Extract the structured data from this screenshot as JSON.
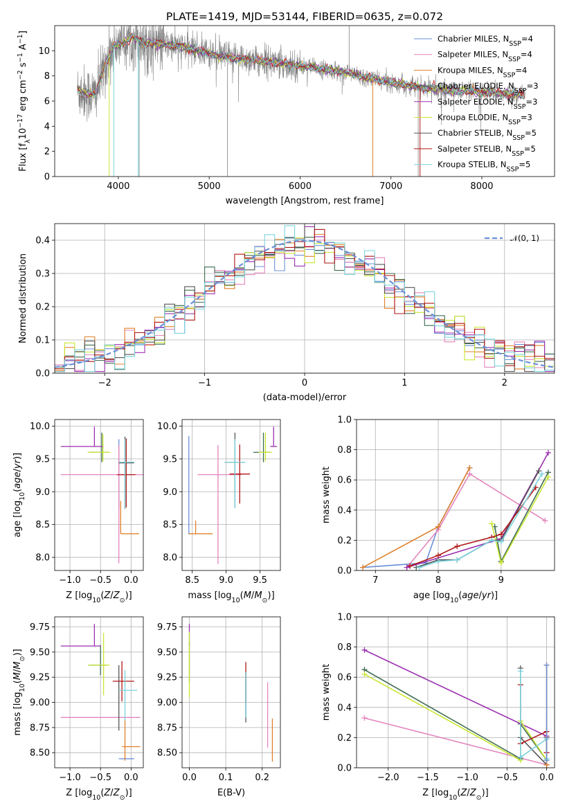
{
  "title": "PLATE=1419, MJD=53144, FIBERID=0635, z=0.072",
  "colors": {
    "chabrier_miles": "#6a8fd8",
    "salpeter_miles": "#e484bc",
    "kroupa_miles": "#e0802a",
    "chabrier_elodie": "#3d6b50",
    "salpeter_elodie": "#9a2fb0",
    "kroupa_elodie": "#c8e632",
    "chabrier_stelib": "#555555",
    "salpeter_stelib": "#b01515",
    "kroupa_stelib": "#7ad3dc",
    "data": "#808080",
    "normal": "#6a8fd8"
  },
  "chart_data": [
    {
      "id": "spectrum",
      "type": "line",
      "title": "PLATE=1419, MJD=53144, FIBERID=0635, z=0.072",
      "xlabel": "wavelength [Angstrom, rest frame]",
      "ylabel_parts": [
        "Flux [f",
        "λ",
        "10",
        "−17",
        " erg cm",
        "−2",
        " s",
        "−1",
        " A",
        "−1",
        "]"
      ],
      "xlim": [
        3300,
        8800
      ],
      "ylim": [
        0,
        12
      ],
      "xticks": [
        4000,
        5000,
        6000,
        7000,
        8000
      ],
      "yticks": [
        0,
        2,
        4,
        6,
        8,
        10
      ],
      "continuum": {
        "x": [
          3550,
          3650,
          3750,
          3850,
          3950,
          4050,
          4150,
          4300,
          4500,
          4700,
          4900,
          5100,
          5300,
          5500,
          5700,
          5900,
          6100,
          6300,
          6500,
          6700,
          6900,
          7100,
          7300,
          7500,
          7700,
          7900,
          8100,
          8300,
          8480
        ],
        "y": [
          6.8,
          6.6,
          6.5,
          8.8,
          10.4,
          10.6,
          11.1,
          10.6,
          10.5,
          10.3,
          10.0,
          9.6,
          9.4,
          9.3,
          9.1,
          8.9,
          8.7,
          8.5,
          8.3,
          7.9,
          7.6,
          7.4,
          7.1,
          6.95,
          6.85,
          6.75,
          6.65,
          6.55,
          6.5
        ]
      },
      "legend": [
        {
          "main": "Chabrier MILES, N",
          "sub": "SSP",
          "end": "=4",
          "color": "chabrier_miles"
        },
        {
          "main": "Salpeter MILES, N",
          "sub": "SSP",
          "end": "=4",
          "color": "salpeter_miles"
        },
        {
          "main": "Kroupa MILES, N",
          "sub": "SSP",
          "end": "=4",
          "color": "kroupa_miles"
        },
        {
          "main": "Chabrier ELODIE, N",
          "sub": "SSP",
          "end": "=3",
          "color": "chabrier_elodie"
        },
        {
          "main": "Salpeter ELODIE, N",
          "sub": "SSP",
          "end": "=3",
          "color": "salpeter_elodie"
        },
        {
          "main": "Kroupa ELODIE, N",
          "sub": "SSP",
          "end": "=3",
          "color": "kroupa_elodie"
        },
        {
          "main": "Chabrier STELIB, N",
          "sub": "SSP",
          "end": "=5",
          "color": "chabrier_stelib"
        },
        {
          "main": "Salpeter STELIB, N",
          "sub": "SSP",
          "end": "=5",
          "color": "salpeter_stelib"
        },
        {
          "main": "Kroupa STELIB, N",
          "sub": "SSP",
          "end": "=5",
          "color": "kroupa_stelib"
        }
      ],
      "legend_position": "upper right"
    },
    {
      "id": "residuals",
      "type": "histogram",
      "xlabel": "(data-model)/error",
      "ylabel": "Normed distribution",
      "xlim": [
        -2.5,
        2.5
      ],
      "ylim": [
        0,
        0.45
      ],
      "xticks": [
        -2,
        -1,
        0,
        1,
        2
      ],
      "yticks": [
        0.0,
        0.1,
        0.2,
        0.3,
        0.4
      ],
      "bin_width": 0.1,
      "legend": "𝒩(0, 1)",
      "legend_position": "upper right",
      "grid": true
    },
    {
      "id": "age_vs_Z",
      "type": "errorbar",
      "xlabel": "Z [log10(Z/Z⊙)]",
      "ylabel": "age [log10(age/yr)]",
      "xlim": [
        -1.25,
        0.2
      ],
      "ylim": [
        7.8,
        10.1
      ],
      "xticks": [
        -1.0,
        -0.5,
        0.0
      ],
      "yticks": [
        8.0,
        8.5,
        9.0,
        9.5,
        10.0
      ],
      "points": [
        {
          "c": "chabrier_miles",
          "x": -0.2,
          "xerr": [
            0,
            0
          ],
          "y": 9.3,
          "yerr": [
            0.55,
            0.5
          ]
        },
        {
          "c": "salpeter_miles",
          "x": -0.2,
          "xerr": [
            0.95,
            0.4
          ],
          "y": 9.26,
          "yerr": [
            1.35,
            0.45
          ]
        },
        {
          "c": "kroupa_miles",
          "x": -0.17,
          "xerr": [
            0,
            0.3
          ],
          "y": 8.36,
          "yerr": [
            0,
            0.5
          ]
        },
        {
          "c": "chabrier_elodie",
          "x": -0.48,
          "xerr": [
            0.2,
            0.1
          ],
          "y": 9.6,
          "yerr": [
            0.15,
            0.3
          ]
        },
        {
          "c": "salpeter_elodie",
          "x": -0.6,
          "xerr": [
            0.55,
            0.15
          ],
          "y": 9.69,
          "yerr": [
            0,
            0.3
          ]
        },
        {
          "c": "kroupa_elodie",
          "x": -0.46,
          "xerr": [
            0.25,
            0.12
          ],
          "y": 9.6,
          "yerr": [
            0.14,
            0.28
          ]
        },
        {
          "c": "chabrier_stelib",
          "x": -0.1,
          "xerr": [
            0.1,
            0.15
          ],
          "y": 9.44,
          "yerr": [
            0.7,
            0.4
          ]
        },
        {
          "c": "salpeter_stelib",
          "x": -0.08,
          "xerr": [
            0.15,
            0.15
          ],
          "y": 9.26,
          "yerr": [
            0.5,
            0.55
          ]
        },
        {
          "c": "kroupa_stelib",
          "x": -0.1,
          "xerr": [
            0.1,
            0.15
          ],
          "y": 9.45,
          "yerr": [
            0.7,
            0.35
          ]
        }
      ]
    },
    {
      "id": "age_vs_mass",
      "type": "errorbar",
      "xlabel": "mass [log10(M/M⊙)]",
      "ylabel": "",
      "xlim": [
        8.35,
        9.8
      ],
      "ylim": [
        7.8,
        10.1
      ],
      "xticks": [
        8.5,
        9.0,
        9.5
      ],
      "yticks": [
        8.0,
        8.5,
        9.0,
        9.5,
        10.0
      ],
      "points": [
        {
          "c": "chabrier_miles",
          "x": 8.45,
          "xerr": [
            0,
            0
          ],
          "y": 9.3,
          "yerr": [
            0.95,
            0.55
          ]
        },
        {
          "c": "salpeter_miles",
          "x": 8.88,
          "xerr": [
            0.3,
            0.35
          ],
          "y": 9.26,
          "yerr": [
            1.36,
            0.45
          ]
        },
        {
          "c": "kroupa_miles",
          "x": 8.55,
          "xerr": [
            0.1,
            0.25
          ],
          "y": 8.36,
          "yerr": [
            0,
            0.2
          ]
        },
        {
          "c": "chabrier_elodie",
          "x": 9.55,
          "xerr": [
            0.15,
            0.1
          ],
          "y": 9.6,
          "yerr": [
            0.15,
            0.3
          ]
        },
        {
          "c": "salpeter_elodie",
          "x": 9.7,
          "xerr": [
            0.05,
            0.05
          ],
          "y": 9.69,
          "yerr": [
            0,
            0.3
          ]
        },
        {
          "c": "kroupa_elodie",
          "x": 9.58,
          "xerr": [
            0.1,
            0.1
          ],
          "y": 9.6,
          "yerr": [
            0.14,
            0.3
          ]
        },
        {
          "c": "chabrier_stelib",
          "x": 9.13,
          "xerr": [
            0.15,
            0.15
          ],
          "y": 9.45,
          "yerr": [
            0.7,
            0.45
          ]
        },
        {
          "c": "salpeter_stelib",
          "x": 9.2,
          "xerr": [
            0.15,
            0.15
          ],
          "y": 9.27,
          "yerr": [
            0.45,
            0.45
          ]
        },
        {
          "c": "kroupa_stelib",
          "x": 9.13,
          "xerr": [
            0.15,
            0.15
          ],
          "y": 9.45,
          "yerr": [
            0.7,
            0.35
          ]
        }
      ]
    },
    {
      "id": "weight_vs_age",
      "type": "line",
      "xlabel": "age [log10(age/yr)]",
      "ylabel": "mass weight",
      "xlim": [
        6.7,
        9.85
      ],
      "ylim": [
        0,
        1.0
      ],
      "xticks": [
        7,
        8,
        9
      ],
      "yticks": [
        0.0,
        0.2,
        0.4,
        0.6,
        0.8,
        1.0
      ],
      "series": [
        {
          "c": "chabrier_miles",
          "x": [
            6.8,
            7.8,
            8.0,
            8.5
          ],
          "y": [
            0.02,
            0.05,
            0.29,
            0.68
          ]
        },
        {
          "c": "salpeter_miles",
          "x": [
            7.5,
            8.0,
            8.5,
            9.7
          ],
          "y": [
            0.02,
            0.27,
            0.64,
            0.33
          ]
        },
        {
          "c": "kroupa_miles",
          "x": [
            6.8,
            8.0,
            8.5
          ],
          "y": [
            0.02,
            0.29,
            0.68
          ]
        },
        {
          "c": "chabrier_elodie",
          "x": [
            8.9,
            9.0,
            9.75
          ],
          "y": [
            0.29,
            0.06,
            0.65
          ]
        },
        {
          "c": "salpeter_elodie",
          "x": [
            7.5,
            9.0,
            9.75
          ],
          "y": [
            0.02,
            0.21,
            0.78
          ]
        },
        {
          "c": "kroupa_elodie",
          "x": [
            8.85,
            9.0,
            9.75
          ],
          "y": [
            0.31,
            0.05,
            0.62
          ]
        },
        {
          "c": "chabrier_stelib",
          "x": [
            7.65,
            8.0,
            8.3,
            8.85,
            9.0,
            9.6
          ],
          "y": [
            0.02,
            0.07,
            0.07,
            0.2,
            0.2,
            0.66
          ]
        },
        {
          "c": "salpeter_stelib",
          "x": [
            7.55,
            8.0,
            8.3,
            8.85,
            9.0,
            9.55
          ],
          "y": [
            0.03,
            0.1,
            0.16,
            0.22,
            0.24,
            0.55
          ]
        },
        {
          "c": "kroupa_stelib",
          "x": [
            7.7,
            8.0,
            8.3,
            8.85,
            9.0,
            9.65
          ],
          "y": [
            0.02,
            0.06,
            0.07,
            0.2,
            0.19,
            0.64
          ]
        }
      ]
    },
    {
      "id": "mass_vs_Z",
      "type": "errorbar",
      "xlabel": "Z [log10(Z/Z⊙)]",
      "ylabel": "mass [log10(M/M⊙)]",
      "xlim": [
        -1.25,
        0.2
      ],
      "ylim": [
        8.35,
        9.85
      ],
      "xticks": [
        -1.0,
        -0.5,
        0.0
      ],
      "yticks": [
        8.5,
        8.75,
        9.0,
        9.25,
        9.5,
        9.75
      ],
      "points": [
        {
          "c": "chabrier_miles",
          "x": -0.1,
          "xerr": [
            0.1,
            0.15
          ],
          "y": 8.44,
          "yerr": [
            0,
            0
          ]
        },
        {
          "c": "salpeter_miles",
          "x": -0.2,
          "xerr": [
            0.95,
            0.35
          ],
          "y": 8.85,
          "yerr": [
            0,
            0
          ]
        },
        {
          "c": "kroupa_miles",
          "x": -0.1,
          "xerr": [
            0.05,
            0.25
          ],
          "y": 8.56,
          "yerr": [
            0.14,
            0.28
          ]
        },
        {
          "c": "chabrier_elodie",
          "x": -0.5,
          "xerr": [
            0.2,
            0.1
          ],
          "y": 9.37,
          "yerr": [
            0.1,
            0.2
          ]
        },
        {
          "c": "salpeter_elodie",
          "x": -0.6,
          "xerr": [
            0.55,
            0.1
          ],
          "y": 9.56,
          "yerr": [
            0,
            0.22
          ]
        },
        {
          "c": "kroupa_elodie",
          "x": -0.45,
          "xerr": [
            0.25,
            0.1
          ],
          "y": 9.37,
          "yerr": [
            0.3,
            0.32
          ]
        },
        {
          "c": "chabrier_stelib",
          "x": -0.2,
          "xerr": [
            0,
            0
          ],
          "y": 9.12,
          "yerr": [
            0.4,
            0.25
          ]
        },
        {
          "c": "salpeter_stelib",
          "x": -0.15,
          "xerr": [
            0.15,
            0.2
          ],
          "y": 9.21,
          "yerr": [
            0.2,
            0.2
          ]
        },
        {
          "c": "kroupa_stelib",
          "x": -0.1,
          "xerr": [
            0.1,
            0.2
          ],
          "y": 9.12,
          "yerr": [
            0.3,
            0.2
          ]
        }
      ]
    },
    {
      "id": "mass_vs_ebv",
      "type": "errorbar",
      "xlabel": "E(B-V)",
      "ylabel": "",
      "xlim": [
        -0.02,
        0.25
      ],
      "ylim": [
        8.35,
        9.85
      ],
      "xticks": [
        0.0,
        0.1,
        0.2
      ],
      "yticks": [
        8.5,
        8.75,
        9.0,
        9.25,
        9.5,
        9.75
      ],
      "points": [
        {
          "c": "chabrier_miles",
          "x": 0.155,
          "xerr": [
            0,
            0
          ],
          "y": 9.1,
          "yerr": [
            0.25,
            0.2
          ]
        },
        {
          "c": "salpeter_miles",
          "x": 0.215,
          "xerr": [
            0,
            0
          ],
          "y": 8.85,
          "yerr": [
            0.3,
            0.35
          ]
        },
        {
          "c": "kroupa_miles",
          "x": 0.228,
          "xerr": [
            0,
            0
          ],
          "y": 8.56,
          "yerr": [
            0.15,
            0.28
          ]
        },
        {
          "c": "chabrier_elodie",
          "x": 0.0,
          "xerr": [
            0,
            0
          ],
          "y": 9.4,
          "yerr": [
            0.2,
            0.2
          ]
        },
        {
          "c": "salpeter_elodie",
          "x": 0.0,
          "xerr": [
            0,
            0
          ],
          "y": 9.56,
          "yerr": [
            0,
            0.22
          ]
        },
        {
          "c": "kroupa_elodie",
          "x": 0.0,
          "xerr": [
            0,
            0
          ],
          "y": 9.35,
          "yerr": [
            0.3,
            0.35
          ]
        },
        {
          "c": "chabrier_stelib",
          "x": 0.155,
          "xerr": [
            0,
            0
          ],
          "y": 9.1,
          "yerr": [
            0.3,
            0.2
          ]
        },
        {
          "c": "salpeter_stelib",
          "x": 0.155,
          "xerr": [
            0,
            0
          ],
          "y": 9.2,
          "yerr": [
            0.2,
            0.2
          ]
        },
        {
          "c": "kroupa_stelib",
          "x": 0.155,
          "xerr": [
            0,
            0
          ],
          "y": 9.1,
          "yerr": [
            0.25,
            0.2
          ]
        }
      ]
    },
    {
      "id": "weight_vs_Z",
      "type": "line",
      "xlabel": "Z [log10(Z/Z⊙)]",
      "ylabel": "mass weight",
      "xlim": [
        -2.4,
        0.1
      ],
      "ylim": [
        0,
        1.0
      ],
      "xticks": [
        -2.0,
        -1.5,
        -1.0,
        -0.5,
        0.0
      ],
      "yticks": [
        0.0,
        0.2,
        0.4,
        0.6,
        0.8,
        1.0
      ],
      "series": [
        {
          "c": "salpeter_miles",
          "x": [
            -2.3,
            0.0
          ],
          "y": [
            0.33,
            0.02
          ]
        },
        {
          "c": "chabrier_elodie",
          "x": [
            -2.3,
            -0.33,
            -0.33,
            0.0
          ],
          "y": [
            0.65,
            0.06,
            0.29,
            0.05
          ]
        },
        {
          "c": "salpeter_elodie",
          "x": [
            -2.3,
            0.0
          ],
          "y": [
            0.78,
            0.21
          ]
        },
        {
          "c": "kroupa_elodie",
          "x": [
            -2.3,
            -0.33,
            -0.33,
            0.0
          ],
          "y": [
            0.62,
            0.05,
            0.31,
            0.05
          ]
        },
        {
          "c": "chabrier_stelib",
          "x": [
            -0.33,
            -0.33,
            0.0,
            0.0
          ],
          "y": [
            0.66,
            0.2,
            0.02,
            0.2
          ]
        },
        {
          "c": "salpeter_stelib",
          "x": [
            -0.33,
            -0.33,
            0.0,
            0.0
          ],
          "y": [
            0.55,
            0.16,
            0.24,
            0.1
          ]
        },
        {
          "c": "kroupa_stelib",
          "x": [
            -0.33,
            -0.33,
            0.0,
            0.0
          ],
          "y": [
            0.64,
            0.07,
            0.19,
            0.06
          ]
        },
        {
          "c": "kroupa_miles",
          "x": [
            0.0,
            0.0
          ],
          "y": [
            0.68,
            0.02
          ]
        },
        {
          "c": "chabrier_miles",
          "x": [
            0.0,
            0.0
          ],
          "y": [
            0.68,
            0.05
          ]
        }
      ]
    }
  ]
}
